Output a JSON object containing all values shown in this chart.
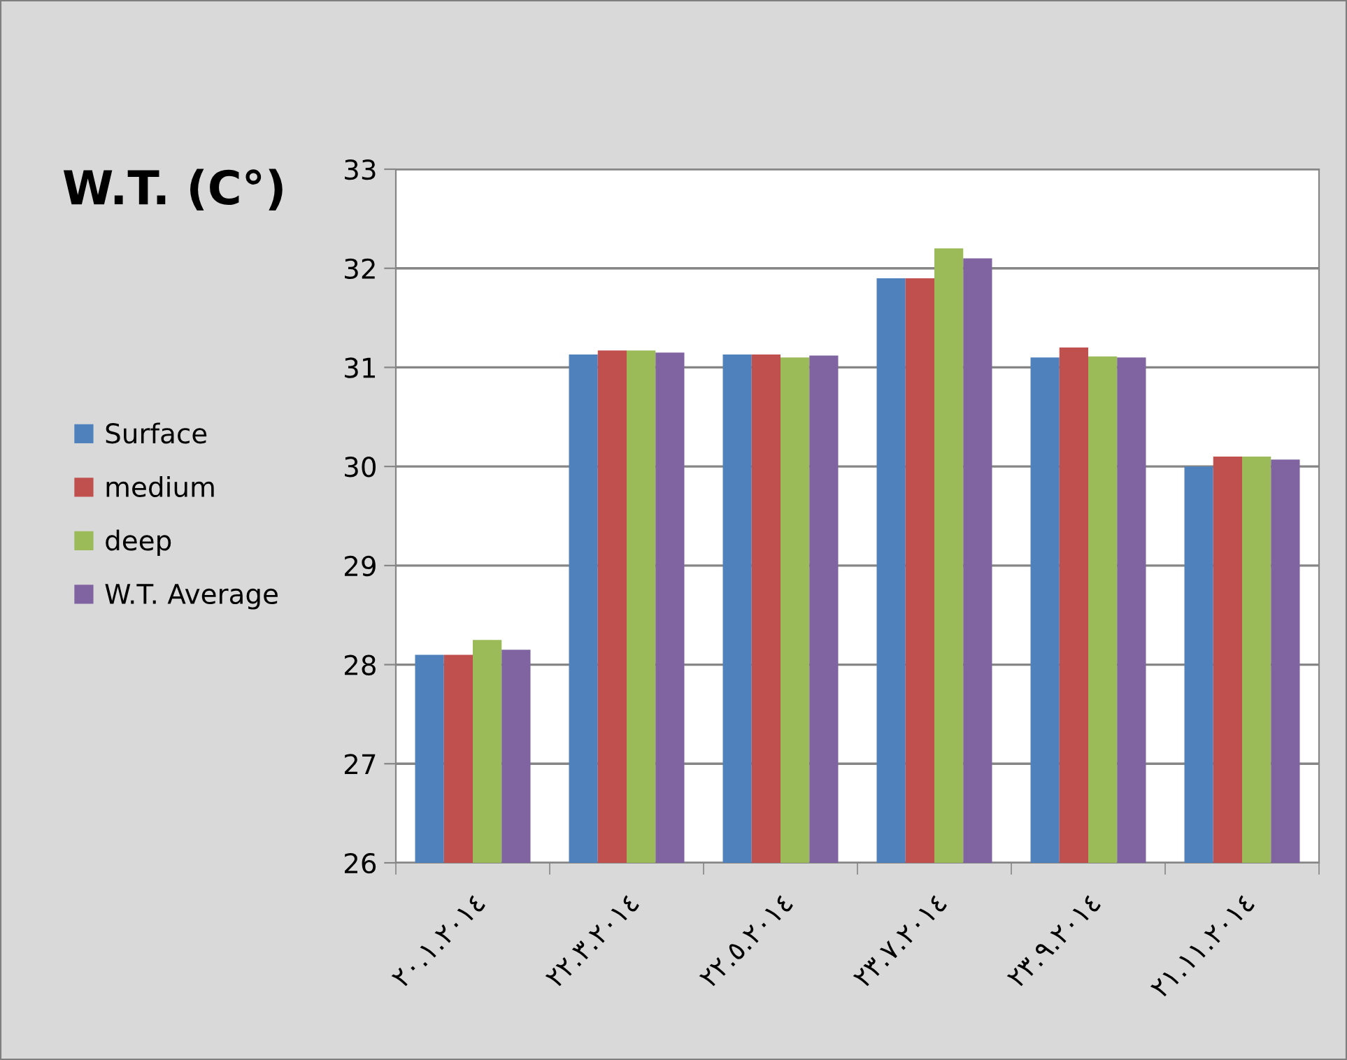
{
  "chart_data": {
    "type": "bar",
    "ylabel": "W.T. (C°)",
    "categories": [
      "٢٠.١.٢٠١٤",
      "٢٢.٣.٢٠١٤",
      "٢٢.٥.٢٠١٤",
      "٢٣.٧.٢٠١٤",
      "٢٣.٩.٢٠١٤",
      "٢١.١١.٢٠١٤"
    ],
    "series": [
      {
        "name": "Surface",
        "color": "#4f81bd",
        "values": [
          28.1,
          31.13,
          31.13,
          31.9,
          31.1,
          30.0
        ]
      },
      {
        "name": "medium",
        "color": "#c0504d",
        "values": [
          28.1,
          31.17,
          31.13,
          31.9,
          31.2,
          30.1
        ]
      },
      {
        "name": "deep",
        "color": "#9bbb59",
        "values": [
          28.25,
          31.17,
          31.1,
          32.2,
          31.11,
          30.1
        ]
      },
      {
        "name": "W.T. Average",
        "color": "#8064a2",
        "values": [
          28.15,
          31.15,
          31.12,
          32.1,
          31.1,
          30.07
        ]
      }
    ],
    "ylim": [
      26,
      33
    ],
    "yticks": [
      26,
      27,
      28,
      29,
      30,
      31,
      32,
      33
    ],
    "grid": "y",
    "legend": "left"
  }
}
